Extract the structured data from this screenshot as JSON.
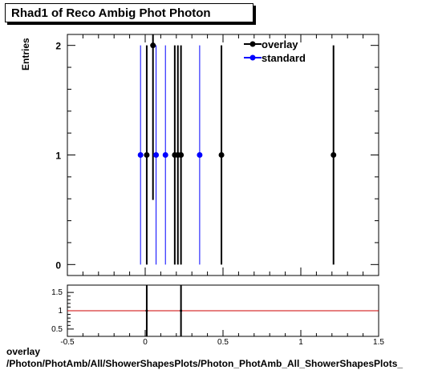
{
  "chart_data": [
    {
      "type": "scatter",
      "title": "Rhad1 of Reco Ambig Phot Photon",
      "ylabel": "Entries",
      "xlim": [
        -0.5,
        1.5
      ],
      "ylim": [
        -0.1,
        2.1
      ],
      "yticks": [
        "0",
        "1",
        "2"
      ],
      "legend": "top-right",
      "series": [
        {
          "name": "overlay",
          "color": "#000000",
          "x": [
            0.01,
            0.05,
            0.19,
            0.21,
            0.23,
            0.49,
            1.21
          ],
          "y": [
            1,
            2,
            1,
            1,
            1,
            1,
            1
          ],
          "err": [
            1,
            1.41,
            1,
            1,
            1,
            1,
            1
          ]
        },
        {
          "name": "standard",
          "color": "#0000ff",
          "x": [
            -0.03,
            0.07,
            0.13,
            0.35
          ],
          "y": [
            1,
            1,
            1,
            1
          ],
          "err": [
            1,
            1,
            1,
            1
          ]
        }
      ]
    },
    {
      "type": "scatter",
      "xlim": [
        -0.5,
        1.5
      ],
      "ylim": [
        0.3,
        1.7
      ],
      "xticks": [
        "-0.5",
        "0",
        "0.5",
        "1",
        "1.5"
      ],
      "yticks": [
        "0.5",
        "1",
        "1.5"
      ],
      "reference_line": 1,
      "reference_color": "#cc0000",
      "x": [
        0.01,
        0.23
      ],
      "y": [
        1,
        1
      ],
      "err": [
        0.9,
        0.9
      ]
    }
  ],
  "footer": {
    "line1": "overlay",
    "line2": "/Photon/PhotAmb/All/ShowerShapesPlots/Photon_PhotAmb_All_ShowerShapesPlots_"
  }
}
